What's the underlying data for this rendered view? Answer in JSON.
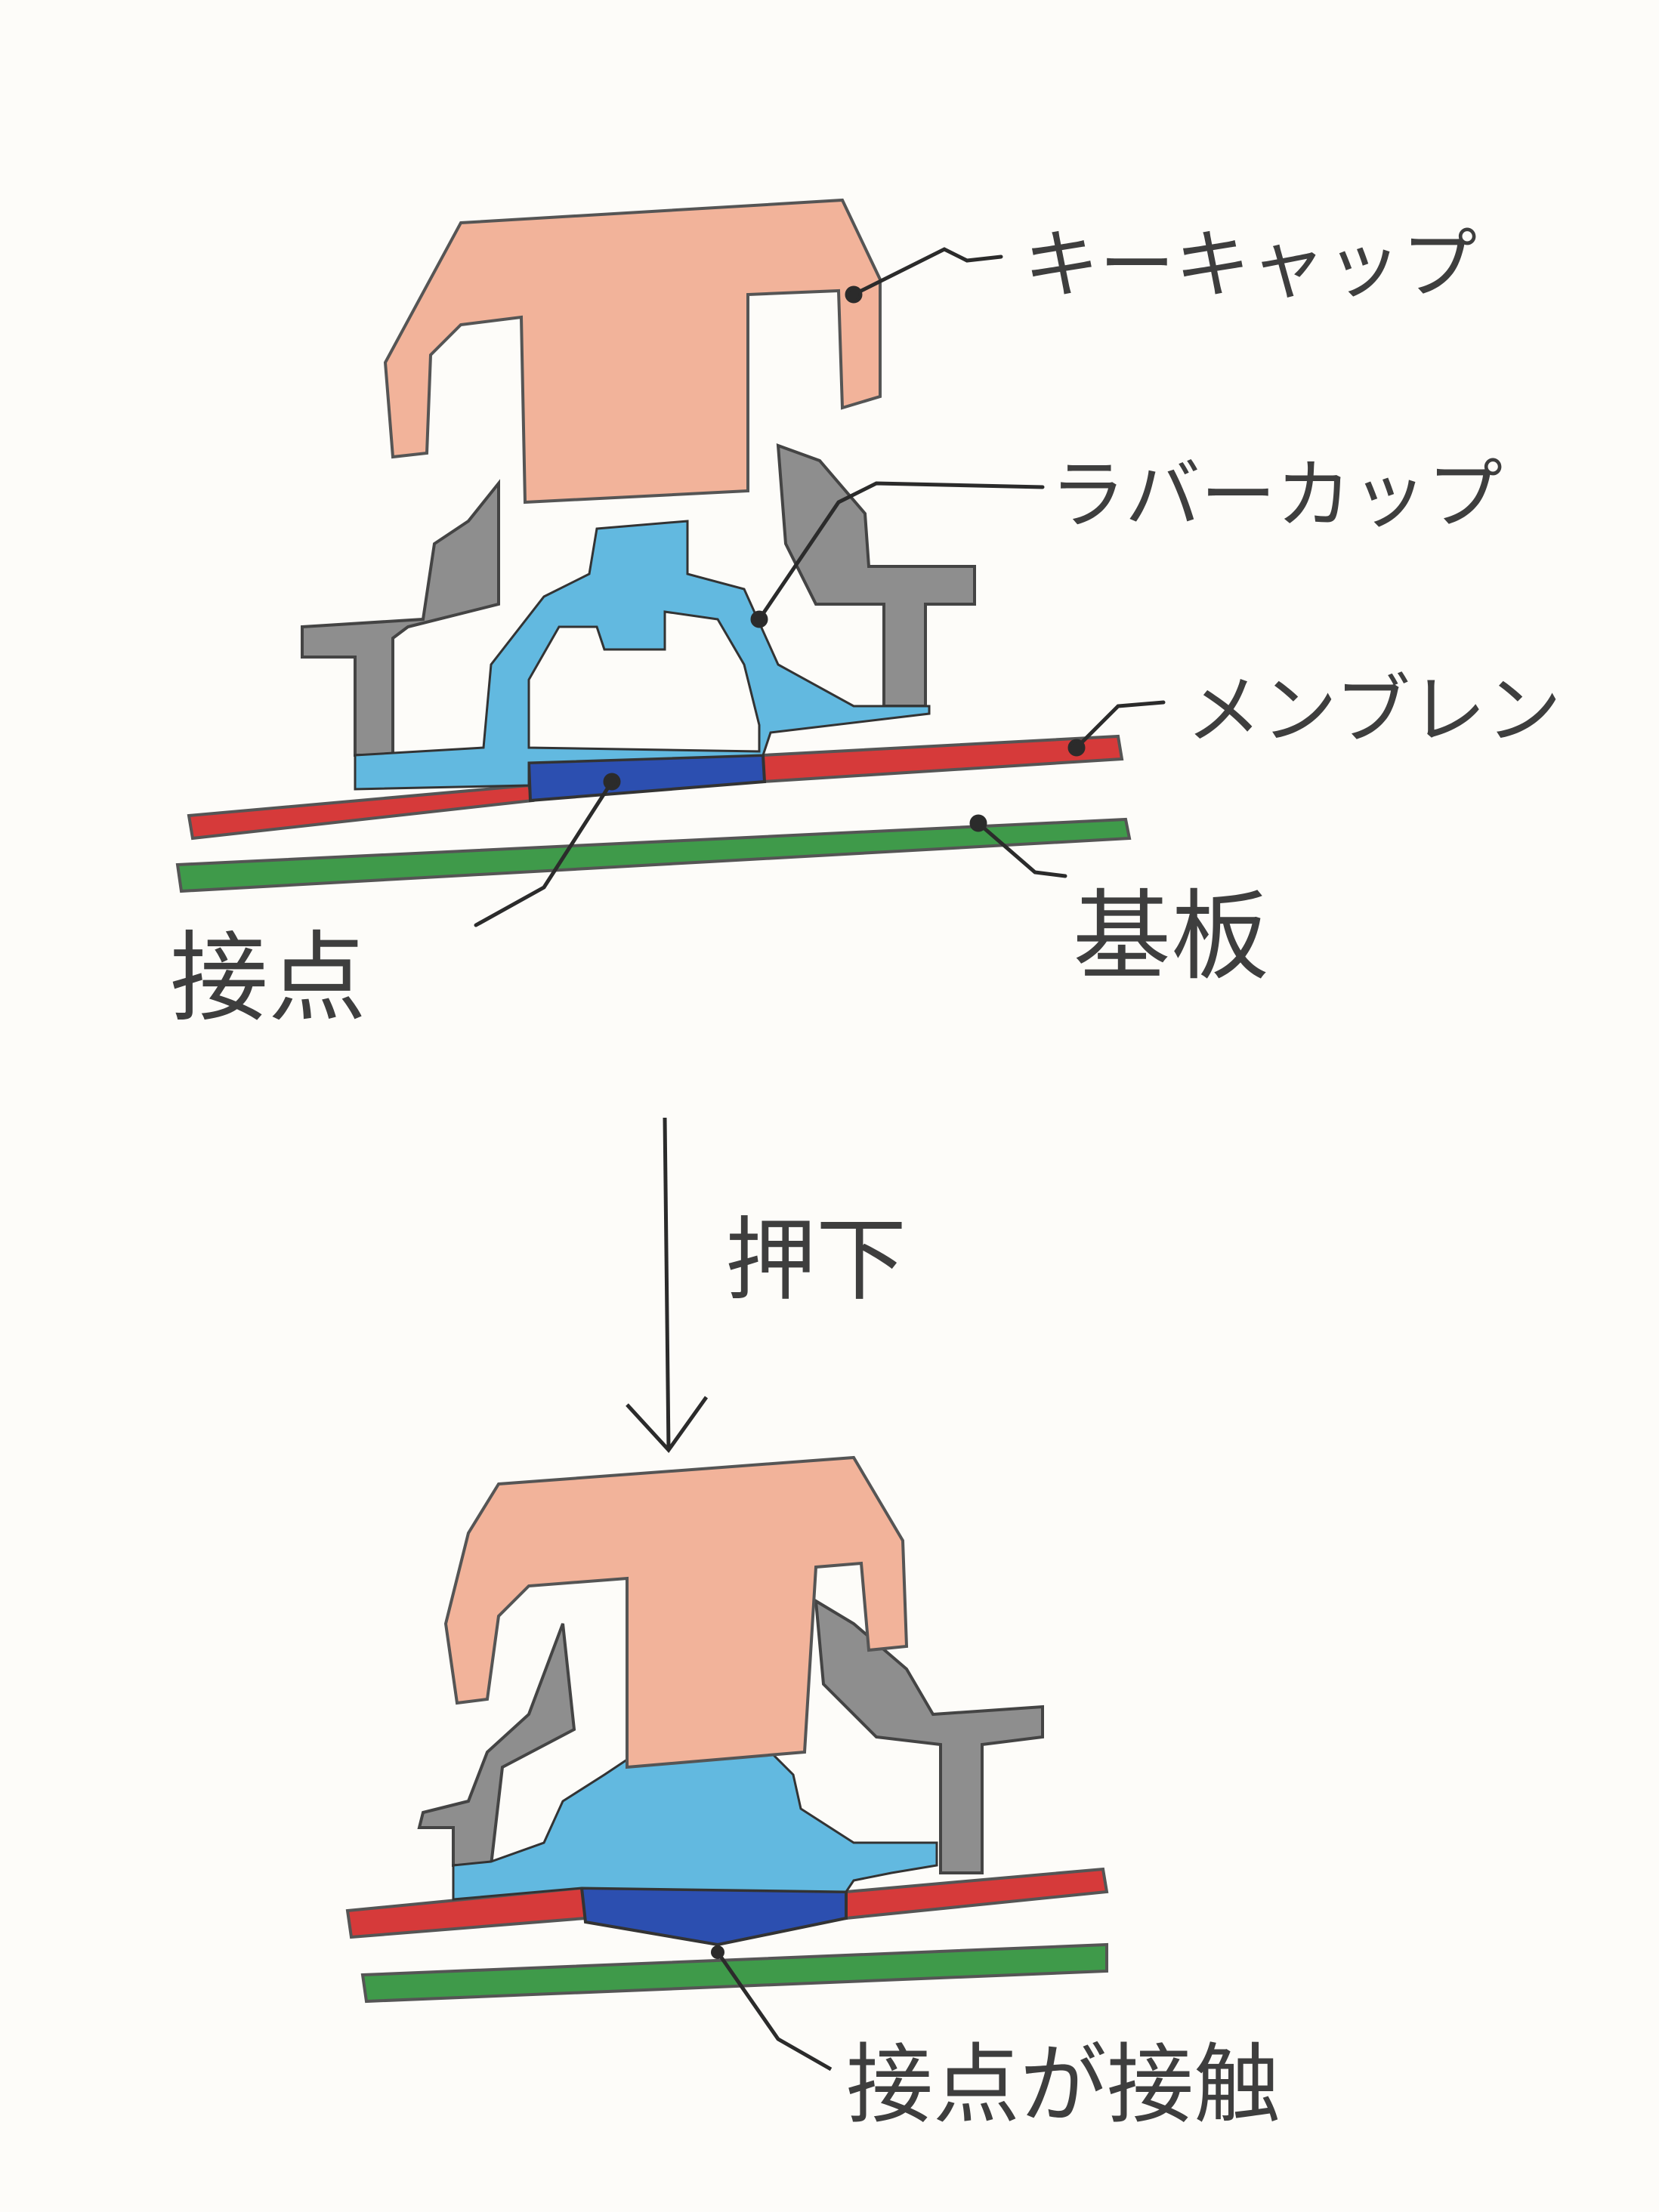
{
  "labels": {
    "keycap": "キーキャップ",
    "rubber_cup": "ラバーカップ",
    "membrane": "メンブレン",
    "contact": "接点",
    "board": "基板",
    "press": "押下",
    "contact_touch": "接点が接触"
  },
  "colors": {
    "keycap": "#f2b39a",
    "rubber_cup": "#62b9e0",
    "housing": "#8e8e8e",
    "membrane": "#d63a3a",
    "contact": "#2c4fb0",
    "board": "#3f9a4a",
    "ink": "#2b2b2b"
  }
}
